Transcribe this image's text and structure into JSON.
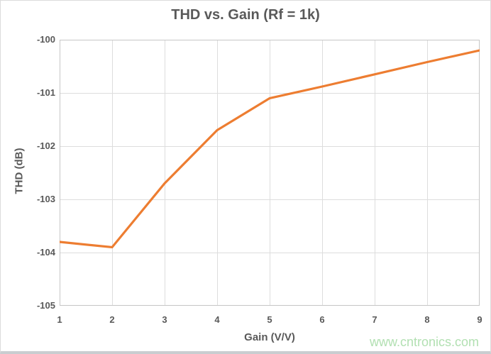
{
  "watermark": "www.cntronics.com",
  "colors": {
    "line": "#ED7D31",
    "grid": "#DDDDDD",
    "plot_border": "#C6C6C6",
    "axis_text": "#595959",
    "title_text": "#595959",
    "watermark": "#B2E0B2",
    "background": "#FFFFFF"
  },
  "chart_data": {
    "type": "line",
    "title": "THD vs. Gain (Rf = 1k)",
    "xlabel": "Gain (V/V)",
    "ylabel": "THD (dB)",
    "x": [
      1,
      2,
      3,
      4,
      5,
      6,
      7,
      8,
      9
    ],
    "y": [
      -103.8,
      -103.9,
      -102.7,
      -101.7,
      -101.1,
      -100.88,
      -100.65,
      -100.42,
      -100.2
    ],
    "series_name": "THD",
    "xlim": [
      1,
      9
    ],
    "ylim": [
      -105,
      -100
    ],
    "x_ticks": [
      1,
      2,
      3,
      4,
      5,
      6,
      7,
      8,
      9
    ],
    "y_ticks": [
      -100,
      -101,
      -102,
      -103,
      -104,
      -105
    ],
    "grid": true,
    "legend": "none"
  }
}
